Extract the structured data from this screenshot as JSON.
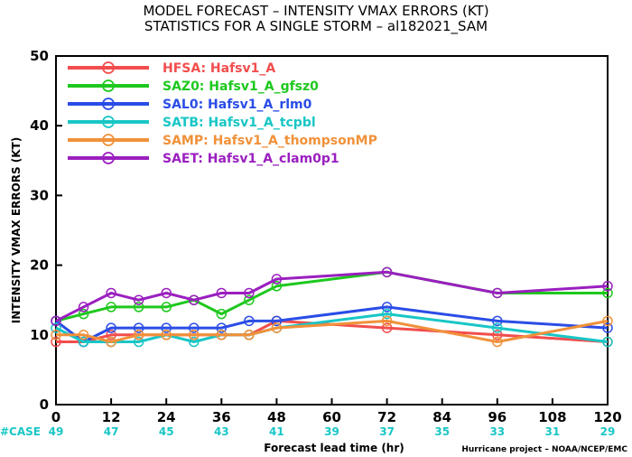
{
  "chart_data": {
    "type": "line",
    "title_line1": "MODEL FORECAST – INTENSITY VMAX ERRORS (KT)",
    "title_line2": "STATISTICS FOR A SINGLE STORM – al182021_SAM",
    "xlabel": "Forecast lead time (hr)",
    "ylabel": "INTENSITY VMAX ERRORS (KT)",
    "xlim": [
      0,
      120
    ],
    "ylim": [
      0,
      50
    ],
    "x_ticks": [
      0,
      12,
      24,
      36,
      48,
      60,
      72,
      84,
      96,
      108,
      120
    ],
    "y_ticks": [
      0,
      10,
      20,
      30,
      40,
      50
    ],
    "case_label": "#CASE",
    "case_color": "#19c6c6",
    "cases": [
      49,
      47,
      45,
      43,
      41,
      39,
      37,
      35,
      33,
      31,
      29
    ],
    "credit": "Hurricane project – NOAA/NCEP/EMC",
    "x": [
      0,
      6,
      12,
      18,
      24,
      30,
      36,
      42,
      48,
      72,
      96,
      120
    ],
    "series": [
      {
        "name": "HFSA:  Hafsv1_A",
        "color": "#f24d4d",
        "values": [
          9,
          9,
          10,
          10,
          10,
          10,
          10,
          10,
          12,
          11,
          10,
          9
        ]
      },
      {
        "name": "SAZ0:  Hafsv1_A_gfsz0",
        "color": "#1ec81e",
        "values": [
          12,
          13,
          14,
          14,
          14,
          15,
          13,
          15,
          17,
          19,
          16,
          16
        ]
      },
      {
        "name": "SAL0:  Hafsv1_A_rlm0",
        "color": "#2a4de6",
        "values": [
          12,
          9,
          11,
          11,
          11,
          11,
          11,
          12,
          12,
          14,
          12,
          11
        ]
      },
      {
        "name": "SATB:  Hafsv1_A_tcpbl",
        "color": "#19c6c6",
        "values": [
          11,
          9,
          9,
          9,
          10,
          9,
          10,
          10,
          11,
          13,
          11,
          9
        ]
      },
      {
        "name": "SAMP:  Hafsv1_A_thompsonMP",
        "color": "#f0913a",
        "values": [
          10,
          10,
          9,
          10,
          10,
          10,
          10,
          10,
          11,
          12,
          9,
          12
        ]
      },
      {
        "name": "SAET:  Hafsv1_A_clam0p1",
        "color": "#9a1fbf",
        "values": [
          12,
          14,
          16,
          15,
          16,
          15,
          16,
          16,
          18,
          19,
          16,
          17
        ]
      }
    ]
  }
}
